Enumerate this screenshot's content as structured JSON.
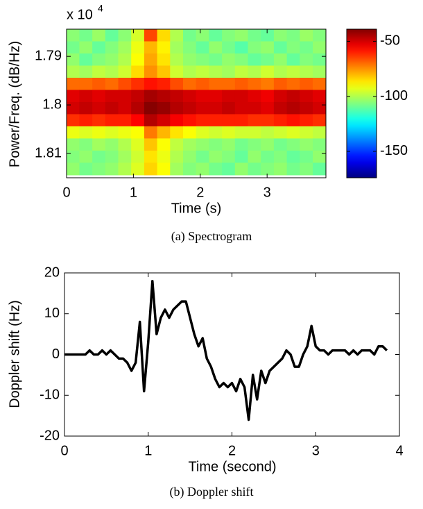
{
  "chart_data": [
    {
      "type": "heatmap",
      "caption": "(a) Spectrogram",
      "x_label": "Time (s)",
      "y_label": "Power/Freq. (dB/Hz)",
      "y_offset_label": "x 10",
      "y_offset_exponent": "4",
      "colormap": "jet",
      "x": [
        0.097,
        0.291,
        0.485,
        0.679,
        0.873,
        1.067,
        1.261,
        1.455,
        1.649,
        1.843,
        2.037,
        2.231,
        2.425,
        2.619,
        2.813,
        3.007,
        3.201,
        3.395,
        3.589,
        3.783
      ],
      "y": [
        1.7857,
        1.7882,
        1.7907,
        1.7932,
        1.7957,
        1.7982,
        1.8007,
        1.8032,
        1.8057,
        1.8082,
        1.8107,
        1.8132
      ],
      "z": [
        [
          -105,
          -108,
          -103,
          -110,
          -105,
          -95,
          -65,
          -85,
          -100,
          -108,
          -105,
          -110,
          -106,
          -104,
          -108,
          -110,
          -105,
          -107,
          -103,
          -106
        ],
        [
          -108,
          -104,
          -110,
          -106,
          -102,
          -92,
          -80,
          -88,
          -102,
          -106,
          -110,
          -104,
          -108,
          -112,
          -106,
          -104,
          -110,
          -106,
          -108,
          -104
        ],
        [
          -104,
          -110,
          -106,
          -104,
          -100,
          -90,
          -78,
          -86,
          -100,
          -104,
          -106,
          -108,
          -104,
          -106,
          -110,
          -108,
          -104,
          -110,
          -106,
          -108
        ],
        [
          -100,
          -102,
          -98,
          -100,
          -96,
          -85,
          -75,
          -82,
          -96,
          -100,
          -98,
          -100,
          -102,
          -98,
          -100,
          -96,
          -100,
          -98,
          -100,
          -102
        ],
        [
          -70,
          -70,
          -68,
          -70,
          -66,
          -62,
          -58,
          -60,
          -66,
          -70,
          -68,
          -70,
          -70,
          -68,
          -70,
          -72,
          -68,
          -70,
          -68,
          -70
        ],
        [
          -52,
          -50,
          -52,
          -50,
          -50,
          -48,
          -44,
          -46,
          -48,
          -50,
          -52,
          -52,
          -50,
          -50,
          -52,
          -54,
          -50,
          -48,
          -50,
          -52
        ],
        [
          -50,
          -48,
          -50,
          -48,
          -50,
          -46,
          -40,
          -42,
          -46,
          -48,
          -50,
          -50,
          -48,
          -50,
          -50,
          -52,
          -48,
          -46,
          -48,
          -50
        ],
        [
          -62,
          -60,
          -62,
          -60,
          -60,
          -56,
          -46,
          -50,
          -55,
          -58,
          -60,
          -60,
          -60,
          -60,
          -62,
          -62,
          -60,
          -58,
          -60,
          -62
        ],
        [
          -92,
          -94,
          -92,
          -94,
          -92,
          -90,
          -72,
          -80,
          -86,
          -90,
          -94,
          -96,
          -94,
          -96,
          -96,
          -98,
          -96,
          -94,
          -96,
          -98
        ],
        [
          -104,
          -106,
          -102,
          -104,
          -100,
          -94,
          -82,
          -90,
          -98,
          -102,
          -104,
          -106,
          -104,
          -108,
          -106,
          -104,
          -108,
          -106,
          -104,
          -106
        ],
        [
          -106,
          -104,
          -108,
          -106,
          -102,
          -96,
          -86,
          -92,
          -100,
          -104,
          -108,
          -104,
          -106,
          -110,
          -104,
          -108,
          -106,
          -110,
          -108,
          -104
        ],
        [
          -104,
          -108,
          -106,
          -104,
          -100,
          -94,
          -84,
          -90,
          -102,
          -106,
          -104,
          -108,
          -110,
          -104,
          -108,
          -106,
          -104,
          -108,
          -106,
          -110
        ]
      ],
      "xlim": [
        0,
        3.88
      ],
      "xticks": [
        0,
        1,
        2,
        3
      ],
      "ylim": [
        1.7844,
        1.815
      ],
      "y_reversed": true,
      "yticks": [
        1.79,
        1.8,
        1.81
      ],
      "clim": [
        -174,
        -39
      ],
      "cticks": [
        -50,
        -100,
        -150
      ]
    },
    {
      "type": "line",
      "caption": "(b) Doppler shift",
      "x_label": "Time (second)",
      "y_label": "Doppler shift (Hz)",
      "color": "#000000",
      "x": [
        0,
        0.25,
        0.3,
        0.35,
        0.4,
        0.45,
        0.5,
        0.55,
        0.6,
        0.65,
        0.7,
        0.75,
        0.8,
        0.85,
        0.9,
        0.95,
        1.0,
        1.05,
        1.1,
        1.15,
        1.2,
        1.25,
        1.3,
        1.35,
        1.4,
        1.45,
        1.5,
        1.55,
        1.6,
        1.65,
        1.7,
        1.75,
        1.8,
        1.85,
        1.9,
        1.95,
        2.0,
        2.05,
        2.1,
        2.15,
        2.2,
        2.25,
        2.3,
        2.35,
        2.4,
        2.45,
        2.5,
        2.55,
        2.6,
        2.65,
        2.7,
        2.75,
        2.8,
        2.85,
        2.9,
        2.95,
        3.0,
        3.05,
        3.1,
        3.15,
        3.2,
        3.25,
        3.3,
        3.35,
        3.4,
        3.45,
        3.5,
        3.55,
        3.6,
        3.65,
        3.7,
        3.75,
        3.8,
        3.85
      ],
      "values": [
        0,
        0,
        1,
        0,
        0,
        1,
        0,
        1,
        0,
        -1,
        -1,
        -2,
        -4,
        -2,
        8,
        -9,
        3,
        18,
        5,
        9,
        11,
        9,
        11,
        12,
        13,
        13,
        9,
        5,
        2,
        4,
        -1,
        -3,
        -6,
        -8,
        -7,
        -8,
        -7,
        -9,
        -6,
        -8,
        -16,
        -5,
        -11,
        -4,
        -7,
        -4,
        -3,
        -2,
        -1,
        1,
        0,
        -3,
        -3,
        0,
        2,
        7,
        2,
        1,
        1,
        0,
        1,
        1,
        1,
        1,
        0,
        1,
        0,
        1,
        1,
        1,
        0,
        2,
        2,
        1
      ],
      "xlim": [
        0,
        4
      ],
      "xticks": [
        0,
        1,
        2,
        3,
        4
      ],
      "ylim": [
        -20,
        20
      ],
      "yticks": [
        -20,
        -10,
        0,
        10,
        20
      ]
    }
  ]
}
